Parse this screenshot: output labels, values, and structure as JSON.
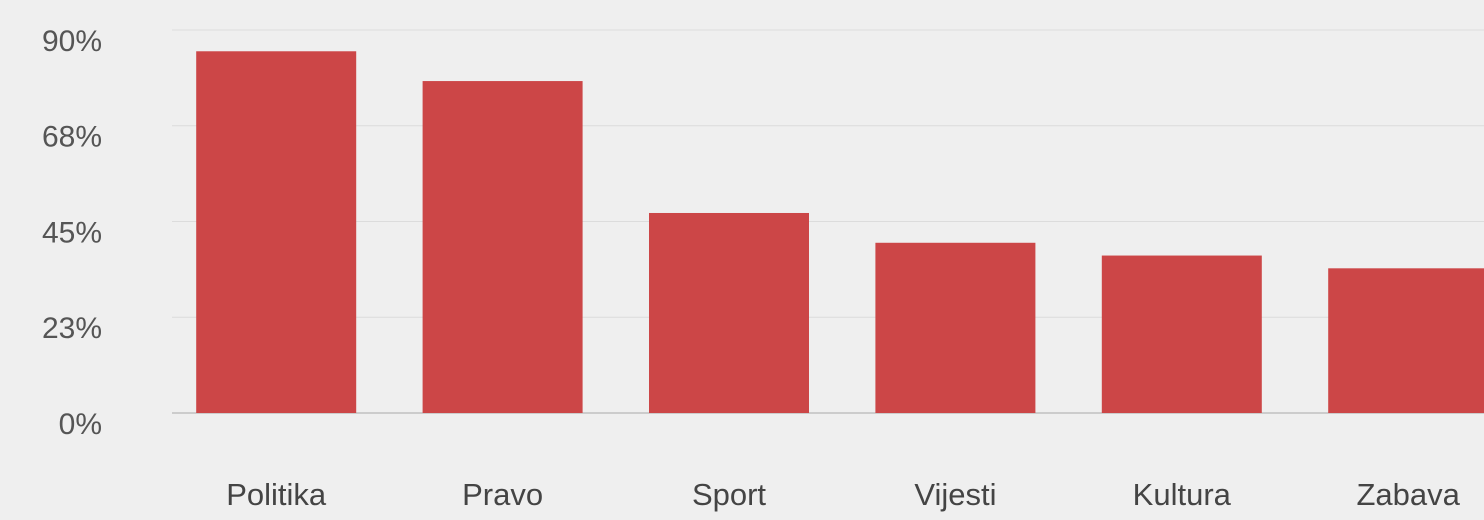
{
  "chart_data": {
    "type": "bar",
    "categories": [
      "Politika",
      "Pravo",
      "Sport",
      "Vijesti",
      "Kultura",
      "Zabava"
    ],
    "values": [
      85,
      78,
      47,
      40,
      37,
      34
    ],
    "color": "#cc4647",
    "ylim": [
      0,
      90
    ],
    "yticks": [
      {
        "value": 0,
        "label": "0%"
      },
      {
        "value": 22.5,
        "label": "23%"
      },
      {
        "value": 45,
        "label": "45%"
      },
      {
        "value": 67.5,
        "label": "68%"
      },
      {
        "value": 90,
        "label": "90%"
      }
    ],
    "grid": true
  }
}
